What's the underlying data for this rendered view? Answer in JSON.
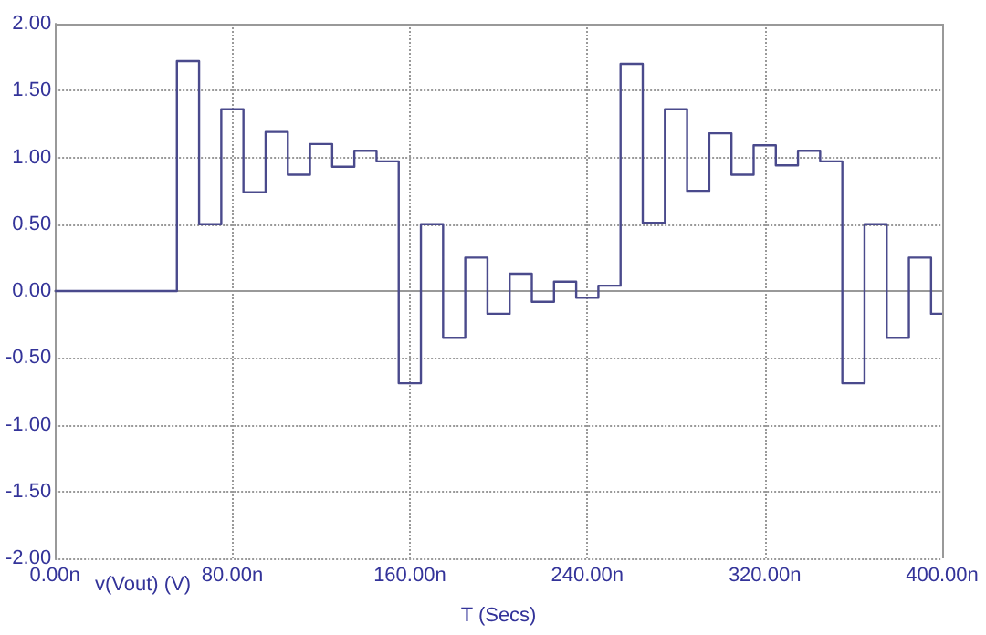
{
  "chart_data": {
    "type": "step",
    "xlabel": "T (Secs)",
    "x": [
      0,
      55,
      65,
      75,
      85,
      95,
      105,
      115,
      125,
      135,
      145,
      155,
      165,
      175,
      185,
      195,
      205,
      215,
      225,
      235,
      245,
      255,
      265,
      275,
      285,
      295,
      305,
      315,
      325,
      335,
      345,
      355,
      365,
      375,
      385,
      395,
      400
    ],
    "series": [
      {
        "name": "v(Vout) (V)",
        "color": "#4a4a8c",
        "values": [
          0,
          1.72,
          0.5,
          1.36,
          0.74,
          1.19,
          0.87,
          1.1,
          0.93,
          1.05,
          0.97,
          -0.69,
          0.5,
          -0.35,
          0.25,
          -0.17,
          0.13,
          -0.08,
          0.07,
          -0.05,
          0.04,
          1.7,
          0.51,
          1.36,
          0.75,
          1.18,
          0.87,
          1.09,
          0.94,
          1.05,
          0.97,
          -0.69,
          0.5,
          -0.35,
          0.25,
          -0.17,
          -0.17
        ]
      }
    ],
    "xlim": [
      0,
      400
    ],
    "xticks": [
      {
        "value": 0,
        "label": "0.00n"
      },
      {
        "value": 80,
        "label": "80.00n"
      },
      {
        "value": 160,
        "label": "160.00n"
      },
      {
        "value": 240,
        "label": "240.00n"
      },
      {
        "value": 320,
        "label": "320.00n"
      },
      {
        "value": 400,
        "label": "400.00n"
      }
    ],
    "ylim": [
      -2,
      2
    ],
    "yticks": [
      {
        "value": -2,
        "label": "-2.00"
      },
      {
        "value": -1.5,
        "label": "-1.50"
      },
      {
        "value": -1,
        "label": "-1.00"
      },
      {
        "value": -0.5,
        "label": "-0.50"
      },
      {
        "value": 0,
        "label": "0.00"
      },
      {
        "value": 0.5,
        "label": "0.50"
      },
      {
        "value": 1,
        "label": "1.00"
      },
      {
        "value": 1.5,
        "label": "1.50"
      },
      {
        "value": 2,
        "label": "2.00"
      }
    ],
    "grid": true,
    "legend": "bottom left",
    "line_style": "solid",
    "marker": "none"
  }
}
